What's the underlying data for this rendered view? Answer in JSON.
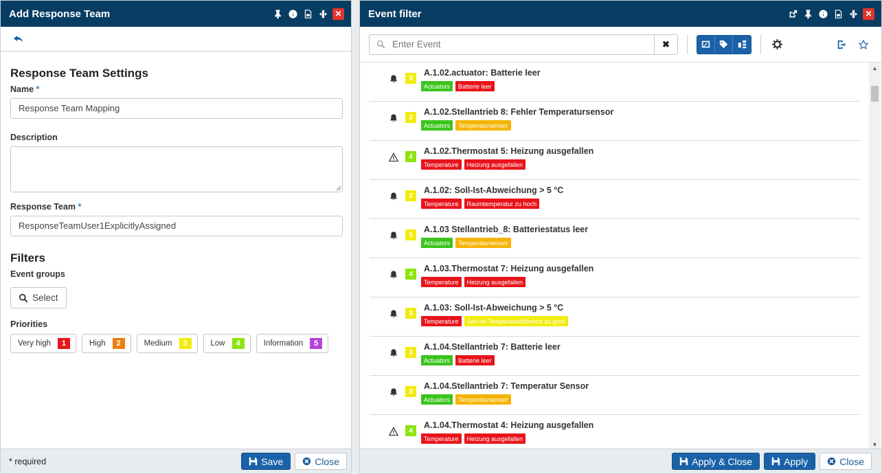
{
  "left_panel": {
    "title": "Add Response Team",
    "section_title": "Response Team Settings",
    "name_label": "Name",
    "required_mark": "*",
    "name_value": "Response Team Mapping",
    "description_label": "Description",
    "description_value": "",
    "response_team_label": "Response Team",
    "response_team_value": "ResponseTeamUser1ExplicitlyAssigned",
    "filters_title": "Filters",
    "event_groups_label": "Event groups",
    "select_button": "Select",
    "priorities_label": "Priorities",
    "priorities": [
      {
        "label": "Very high",
        "num": "1",
        "color": "#e8141b"
      },
      {
        "label": "High",
        "num": "2",
        "color": "#ee7d11"
      },
      {
        "label": "Medium",
        "num": "3",
        "color": "#f2ec0f"
      },
      {
        "label": "Low",
        "num": "4",
        "color": "#8ee40e"
      },
      {
        "label": "Information",
        "num": "5",
        "color": "#b544d8"
      }
    ],
    "footer_required": "* required",
    "save_button": "Save",
    "close_button": "Close"
  },
  "right_panel": {
    "title": "Event filter",
    "search_placeholder": "Enter Event",
    "events": [
      {
        "icon": "bell-icon",
        "priority": "3",
        "priority_color": "#f2ec0f",
        "name": "A.1.02.actuator: Batterie leer",
        "tags": [
          {
            "text": "Actuators",
            "color": "#3bc41c"
          },
          {
            "text": "Batterie leer",
            "color": "#e8141b"
          }
        ]
      },
      {
        "icon": "bell-icon",
        "priority": "3",
        "priority_color": "#f2ec0f",
        "name": "A.1.02.Stellantrieb 8: Fehler Temperatursensor",
        "tags": [
          {
            "text": "Actuators",
            "color": "#3bc41c"
          },
          {
            "text": "Temperatursensor",
            "color": "#f5b400"
          }
        ]
      },
      {
        "icon": "warning-icon",
        "priority": "4",
        "priority_color": "#8ee40e",
        "name": "A.1.02.Thermostat 5: Heizung ausgefallen",
        "tags": [
          {
            "text": "Temperature",
            "color": "#e8141b"
          },
          {
            "text": "Heizung ausgefallen",
            "color": "#e8141b"
          }
        ]
      },
      {
        "icon": "bell-icon",
        "priority": "3",
        "priority_color": "#f2ec0f",
        "name": "A.1.02: Soll-Ist-Abweichung > 5 °C",
        "tags": [
          {
            "text": "Temperature",
            "color": "#e8141b"
          },
          {
            "text": "Raumtemperatur zu hoch",
            "color": "#e8141b"
          }
        ]
      },
      {
        "icon": "bell-icon",
        "priority": "3",
        "priority_color": "#f2ec0f",
        "name": "A.1.03 Stellantrieb_8: Batteriestatus leer",
        "tags": [
          {
            "text": "Actuators",
            "color": "#3bc41c"
          },
          {
            "text": "Temperatursensor",
            "color": "#f5b400"
          }
        ]
      },
      {
        "icon": "bell-icon",
        "priority": "4",
        "priority_color": "#8ee40e",
        "name": "A.1.03.Thermostat 7: Heizung ausgefallen",
        "tags": [
          {
            "text": "Temperature",
            "color": "#e8141b"
          },
          {
            "text": "Heizung ausgefallen",
            "color": "#e8141b"
          }
        ]
      },
      {
        "icon": "bell-icon",
        "priority": "3",
        "priority_color": "#f2ec0f",
        "name": "A.1.03: Soll-Ist-Abweichung > 5 °C",
        "tags": [
          {
            "text": "Temperature",
            "color": "#e8141b"
          },
          {
            "text": "Soll-Ist-Temperaturdifferenz zu groß",
            "color": "#f2ec0f"
          }
        ]
      },
      {
        "icon": "bell-icon",
        "priority": "3",
        "priority_color": "#f2ec0f",
        "name": "A.1.04.Stellantrieb 7: Batterie leer",
        "tags": [
          {
            "text": "Actuators",
            "color": "#3bc41c"
          },
          {
            "text": "Batterie leer",
            "color": "#e8141b"
          }
        ]
      },
      {
        "icon": "bell-icon",
        "priority": "3",
        "priority_color": "#f2ec0f",
        "name": "A.1.04.Stellantrieb 7: Temperatur Sensor",
        "tags": [
          {
            "text": "Actuators",
            "color": "#3bc41c"
          },
          {
            "text": "Temperatursensor",
            "color": "#f5b400"
          }
        ]
      },
      {
        "icon": "warning-icon",
        "priority": "4",
        "priority_color": "#8ee40e",
        "name": "A.1.04.Thermostat 4: Heizung ausgefallen",
        "tags": [
          {
            "text": "Temperature",
            "color": "#e8141b"
          },
          {
            "text": "Heizung ausgefallen",
            "color": "#e8141b"
          }
        ]
      }
    ],
    "apply_close_button": "Apply & Close",
    "apply_button": "Apply",
    "close_button": "Close"
  },
  "colors": {
    "titlebar": "#073d63",
    "primary": "#1a62a8",
    "close_red": "#e0342d"
  }
}
